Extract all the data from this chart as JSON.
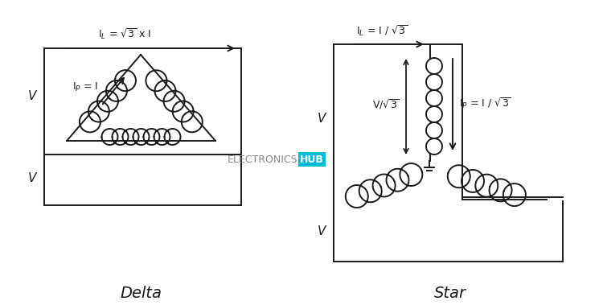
{
  "bg_color": "#ffffff",
  "line_color": "#1a1a1a",
  "title_delta": "Delta",
  "title_star": "Star",
  "label_IL_delta": "I$_L$ = $\\sqrt{3}$ x I",
  "label_IP_delta": "I$_P$ = I",
  "label_IL_star": "I$_L$ = I / $\\sqrt{3}$",
  "label_IP_star": "I$_P$ = I / $\\sqrt{3}$",
  "label_Vsqrt3": "V/$\\sqrt{3}$",
  "watermark_text1": "ELECTRONICS",
  "watermark_text2": "HUB",
  "watermark_color1": "#999999",
  "watermark_color2": "#ffffff",
  "watermark_bg": "#00bcd4"
}
